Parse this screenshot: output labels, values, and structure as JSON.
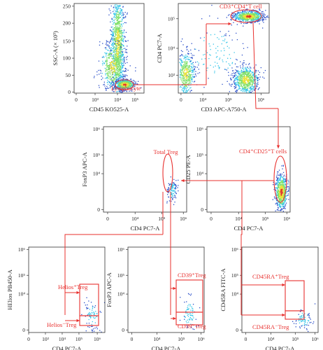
{
  "colors": {
    "gate": "#e8302e",
    "axis": "#333333",
    "density_low": "#2b4fc9",
    "density_mid": "#35c6e8",
    "density_high": "#e8e23a",
    "density_peak": "#e0342a"
  },
  "chart_data": [
    {
      "id": "p1",
      "type": "scatter",
      "xlabel": "CD45 KO525-A",
      "ylabel": "SSC-A (× 10³)",
      "xticks": [
        "0",
        "10³",
        "10⁴",
        "10⁵"
      ],
      "yticks": [
        "0",
        "50",
        "100",
        "150",
        "200",
        "250"
      ],
      "gates": [
        {
          "label": "Lymphocyte"
        }
      ]
    },
    {
      "id": "p2",
      "type": "scatter",
      "xlabel": "CD3 APC-A750-A",
      "ylabel": "CD4 PC7-A",
      "xticks": [
        "0",
        "10⁴",
        "10⁵",
        "10⁶"
      ],
      "yticks": [
        "10³",
        "10⁴",
        "10⁵"
      ],
      "gates": [
        {
          "label": "CD3⁺CD4⁺T cell"
        }
      ]
    },
    {
      "id": "p3",
      "type": "scatter",
      "xlabel": "CD4 PC7-A",
      "ylabel": "FoxP3 APC-A",
      "xticks": [
        "0",
        "10⁴",
        "10⁵",
        "10⁶"
      ],
      "yticks": [
        "0",
        "10⁴",
        "10⁵",
        "10⁶"
      ],
      "gates": [
        {
          "label": "Total Treg"
        }
      ]
    },
    {
      "id": "p4",
      "type": "scatter",
      "xlabel": "CD4 PC7-A",
      "ylabel": "CD25 PE-A",
      "xticks": [
        "0",
        "10⁴",
        "10⁵",
        "10⁶"
      ],
      "yticks": [
        "0",
        "10⁴",
        "10⁵",
        "10⁶"
      ],
      "gates": [
        {
          "label": "CD4⁺CD25⁺T cells"
        }
      ]
    },
    {
      "id": "p5",
      "type": "scatter",
      "xlabel": "CD4 PC7-A",
      "ylabel": "HElios PB450-A",
      "xticks": [
        "0",
        "10³",
        "10⁴",
        "10⁵",
        "10⁶"
      ],
      "yticks": [
        "0",
        "10⁴",
        "10⁵",
        "10⁶"
      ],
      "gates": [
        {
          "label": "Helios⁺Treg"
        },
        {
          "label": "Helios⁻Treg"
        }
      ]
    },
    {
      "id": "p6",
      "type": "scatter",
      "xlabel": "CD4 PC7-A",
      "ylabel": "FoxP3 APC-A",
      "xticks": [
        "0",
        "10⁴",
        "10⁵",
        "10⁶"
      ],
      "yticks": [
        "0",
        "10⁴",
        "10⁵",
        "10⁶"
      ],
      "gates": [
        {
          "label": "CD39⁺Treg"
        },
        {
          "label": "CD39⁻Treg"
        }
      ]
    },
    {
      "id": "p7",
      "type": "scatter",
      "xlabel": "CD4 PC7-A",
      "ylabel": "CD45RA FITC-A",
      "xticks": [
        "0",
        "10⁴",
        "10⁵",
        "10⁶"
      ],
      "yticks": [
        "0",
        "10⁴",
        "10⁵",
        "10⁶"
      ],
      "gates": [
        {
          "label": "CD45RA⁺Treg"
        },
        {
          "label": "CD45RA⁻Treg"
        }
      ]
    }
  ]
}
